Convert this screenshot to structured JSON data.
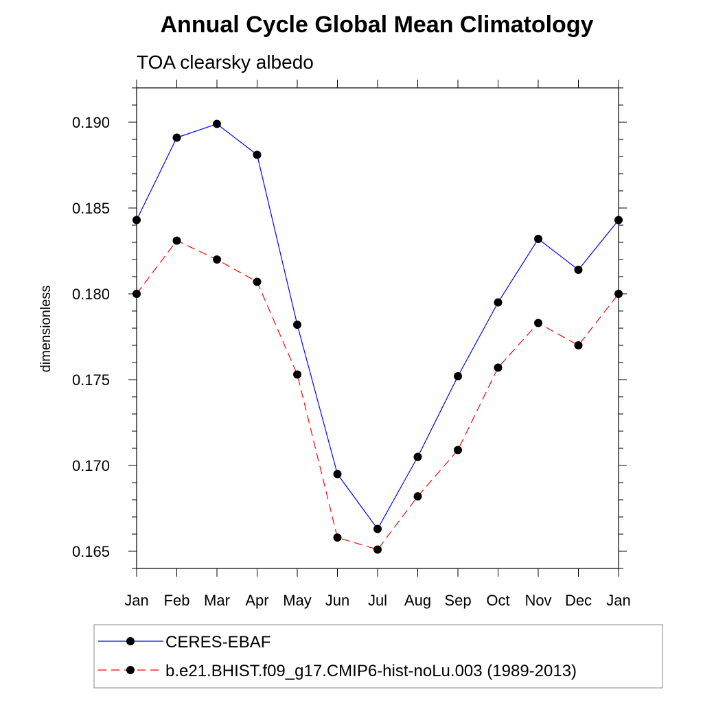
{
  "chart_data": {
    "type": "line",
    "title": "Annual Cycle Global Mean Climatology",
    "subtitle": "TOA clearsky albedo",
    "xlabel": "",
    "ylabel": "dimensionless",
    "categories": [
      "Jan",
      "Feb",
      "Mar",
      "Apr",
      "May",
      "Jun",
      "Jul",
      "Aug",
      "Sep",
      "Oct",
      "Nov",
      "Dec",
      "Jan"
    ],
    "ylim": [
      0.164,
      0.192
    ],
    "yticks": [
      0.165,
      0.17,
      0.175,
      0.18,
      0.185,
      0.19
    ],
    "ytick_labels": [
      "0.165",
      "0.170",
      "0.175",
      "0.180",
      "0.185",
      "0.190"
    ],
    "grid": false,
    "legend_position": "bottom",
    "series": [
      {
        "name": "CERES-EBAF",
        "color": "#0000ff",
        "line_style": "solid",
        "marker": "filled-circle",
        "values": [
          0.1843,
          0.1891,
          0.1899,
          0.1881,
          0.1782,
          0.1695,
          0.1663,
          0.1705,
          0.1752,
          0.1795,
          0.1832,
          0.1814,
          0.1843
        ]
      },
      {
        "name": "b.e21.BHIST.f09_g17.CMIP6-hist-noLu.003 (1989-2013)",
        "color": "#ff0000",
        "line_style": "dashed",
        "marker": "filled-circle",
        "values": [
          0.18,
          0.1831,
          0.182,
          0.1807,
          0.1753,
          0.1658,
          0.1651,
          0.1682,
          0.1709,
          0.1757,
          0.1783,
          0.177,
          0.18
        ]
      }
    ]
  }
}
